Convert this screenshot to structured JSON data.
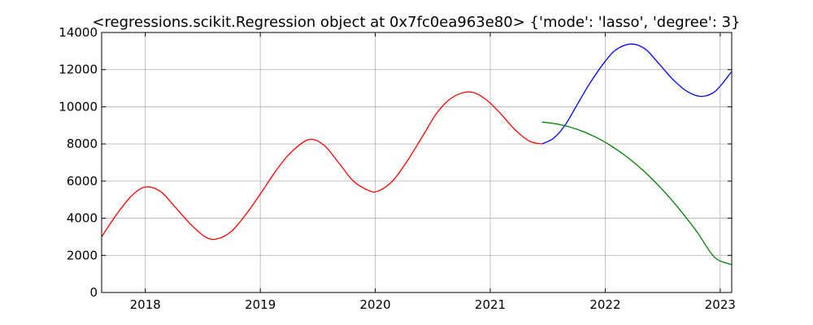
{
  "chart_data": {
    "type": "line",
    "title": "<regressions.scikit.Regression object at 0x7fc0ea963e80> {'mode': 'lasso', 'degree': 3}",
    "xlabel": "",
    "ylabel": "",
    "x_unit": "year",
    "xlim": [
      2017.62,
      2023.1
    ],
    "ylim": [
      0,
      14000
    ],
    "grid": true,
    "xticks": [
      2018,
      2019,
      2020,
      2021,
      2022,
      2023
    ],
    "yticks": [
      0,
      2000,
      4000,
      6000,
      8000,
      10000,
      12000,
      14000
    ],
    "series": [
      {
        "color": "#ff0000",
        "x": [
          2017.62,
          2017.75,
          2017.88,
          2018.0,
          2018.13,
          2018.26,
          2018.39,
          2018.52,
          2018.62,
          2018.75,
          2018.88,
          2019.0,
          2019.13,
          2019.26,
          2019.42,
          2019.55,
          2019.68,
          2019.81,
          2019.94,
          2020.02,
          2020.15,
          2020.28,
          2020.41,
          2020.54,
          2020.67,
          2020.82,
          2020.95,
          2021.08,
          2021.21,
          2021.34,
          2021.45
        ],
        "y": [
          3000,
          4200,
          5200,
          5680,
          5450,
          4600,
          3700,
          3000,
          2880,
          3300,
          4250,
          5300,
          6500,
          7500,
          8230,
          7950,
          7000,
          6000,
          5500,
          5450,
          6000,
          7100,
          8400,
          9700,
          10500,
          10800,
          10450,
          9700,
          8800,
          8150,
          8000
        ]
      },
      {
        "color": "#0000ff",
        "x": [
          2021.45,
          2021.55,
          2021.65,
          2021.75,
          2021.87,
          2022.0,
          2022.1,
          2022.23,
          2022.35,
          2022.47,
          2022.6,
          2022.72,
          2022.84,
          2022.96,
          2023.1
        ],
        "y": [
          8000,
          8300,
          9000,
          10050,
          11300,
          12450,
          13100,
          13380,
          13100,
          12300,
          11400,
          10800,
          10560,
          10850,
          11900
        ]
      },
      {
        "color": "#008000",
        "x": [
          2021.45,
          2021.6,
          2021.75,
          2021.9,
          2022.05,
          2022.2,
          2022.35,
          2022.5,
          2022.65,
          2022.8,
          2022.95,
          2023.1
        ],
        "y": [
          9180,
          9050,
          8800,
          8420,
          7900,
          7250,
          6460,
          5520,
          4450,
          3250,
          1900,
          1500
        ]
      }
    ]
  }
}
